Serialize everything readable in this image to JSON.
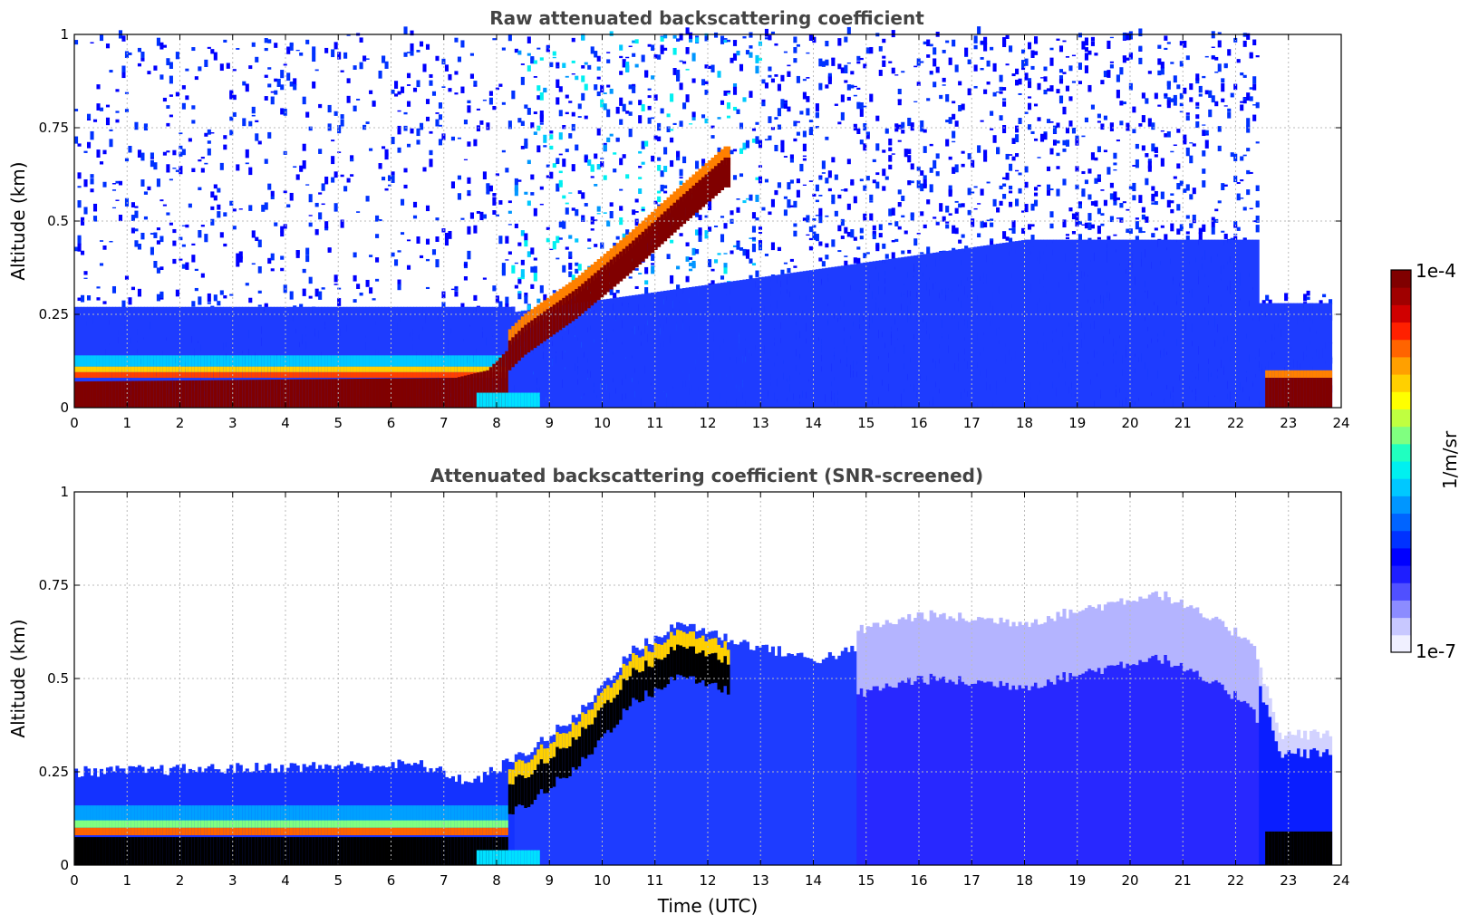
{
  "chart_data": [
    {
      "type": "heatmap",
      "id": "raw",
      "title": "Raw attenuated backscattering coefficient",
      "xlabel": "",
      "ylabel": "Altitude (km)",
      "xlim": [
        0,
        24
      ],
      "ylim": [
        0,
        1
      ],
      "xticks": [
        "0",
        "1",
        "2",
        "3",
        "4",
        "5",
        "6",
        "7",
        "8",
        "9",
        "10",
        "11",
        "12",
        "13",
        "14",
        "15",
        "16",
        "17",
        "18",
        "19",
        "20",
        "21",
        "22",
        "23",
        "24"
      ],
      "yticks": [
        {
          "value": 0,
          "label": "0"
        },
        {
          "value": 0.25,
          "label": "0.25"
        },
        {
          "value": 0.5,
          "label": "0.5"
        },
        {
          "value": 0.75,
          "label": "0.75"
        },
        {
          "value": 1,
          "label": "1"
        }
      ],
      "grid": true,
      "data_end_time": 23.8,
      "saturation_color": "#800000",
      "layer_profile": [
        {
          "t": 0,
          "top": 0.07
        },
        {
          "t": 7.2,
          "top": 0.08
        },
        {
          "t": 7.8,
          "top": 0.1
        },
        {
          "t": 8.5,
          "top": 0.2
        },
        {
          "t": 9.5,
          "top": 0.3
        },
        {
          "t": 10.5,
          "top": 0.42
        },
        {
          "t": 11.5,
          "top": 0.55
        },
        {
          "t": 12.3,
          "top": 0.65
        }
      ]
    },
    {
      "type": "heatmap",
      "id": "screened",
      "title": "Attenuated backscattering coefficient (SNR-screened)",
      "xlabel": "Time (UTC)",
      "ylabel": "Altitude (km)",
      "xlim": [
        0,
        24
      ],
      "ylim": [
        0,
        1
      ],
      "xticks": [
        "0",
        "1",
        "2",
        "3",
        "4",
        "5",
        "6",
        "7",
        "8",
        "9",
        "10",
        "11",
        "12",
        "13",
        "14",
        "15",
        "16",
        "17",
        "18",
        "19",
        "20",
        "21",
        "22",
        "23",
        "24"
      ],
      "yticks": [
        {
          "value": 0,
          "label": "0"
        },
        {
          "value": 0.25,
          "label": "0.25"
        },
        {
          "value": 0.5,
          "label": "0.5"
        },
        {
          "value": 0.75,
          "label": "0.75"
        },
        {
          "value": 1,
          "label": "1"
        }
      ],
      "grid": true,
      "data_end_time": 23.8,
      "saturation_color": "#000000",
      "boundary_layer_top": [
        {
          "t": 0,
          "h": 0.25
        },
        {
          "t": 6.5,
          "h": 0.27
        },
        {
          "t": 7.5,
          "h": 0.22
        },
        {
          "t": 8.5,
          "h": 0.3
        },
        {
          "t": 9.5,
          "h": 0.4
        },
        {
          "t": 10.5,
          "h": 0.57
        },
        {
          "t": 11.5,
          "h": 0.65
        },
        {
          "t": 12.5,
          "h": 0.6
        },
        {
          "t": 14,
          "h": 0.55
        },
        {
          "t": 16,
          "h": 0.62
        },
        {
          "t": 18,
          "h": 0.6
        },
        {
          "t": 20.5,
          "h": 0.68
        },
        {
          "t": 22.3,
          "h": 0.55
        },
        {
          "t": 22.8,
          "h": 0.3
        },
        {
          "t": 23.8,
          "h": 0.3
        }
      ]
    }
  ],
  "colorbar": {
    "label": "1/m/sr",
    "max_label": "1e-4",
    "min_label": "1e-7",
    "colors": [
      "#f0f0ff",
      "#c8c8ff",
      "#8c8cff",
      "#5050ff",
      "#1e1eff",
      "#0000ff",
      "#0032ff",
      "#0064ff",
      "#0096ff",
      "#00c8ff",
      "#00f0f0",
      "#20ffc0",
      "#80ff80",
      "#c0ff40",
      "#ffff00",
      "#ffd000",
      "#ffa000",
      "#ff6400",
      "#ff2000",
      "#d00000",
      "#a00000",
      "#800000"
    ]
  }
}
